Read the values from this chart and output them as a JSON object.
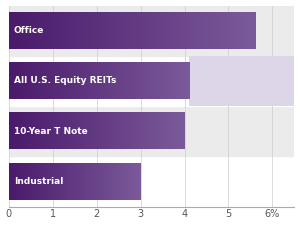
{
  "categories": [
    "Industrial",
    "10-Year T Note",
    "All U.S. Equity REITs",
    "Office"
  ],
  "values": [
    3.0,
    4.0,
    4.1,
    5.6
  ],
  "bar_color_dark": "#4a1a6b",
  "bar_color_mid": "#7b5a9a",
  "highlight_color": "#ddd5e8",
  "row_alt_color": "#ebebeb",
  "row_base_color": "#ffffff",
  "xlim": [
    0,
    6.5
  ],
  "xticks": [
    0,
    1,
    2,
    3,
    4,
    5,
    6
  ],
  "xtick_labels": [
    "0",
    "1",
    "2",
    "3",
    "4",
    "5",
    "6%"
  ],
  "bar_height": 0.72,
  "label_fontsize": 6.5,
  "tick_fontsize": 7.0,
  "highlight_bar_index": 2,
  "figsize": [
    3.0,
    2.25
  ],
  "dpi": 100
}
